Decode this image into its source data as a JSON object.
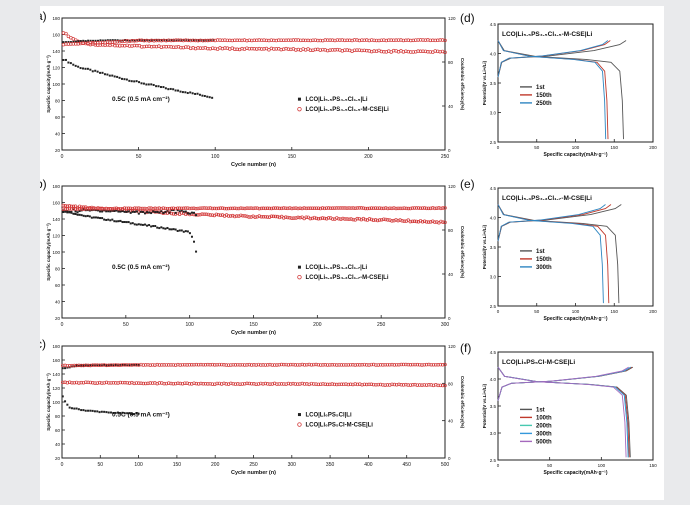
{
  "chart_data": [
    {
      "panel_label": "(a)",
      "type": "scatter",
      "xlabel": "Cycle number (n)",
      "ylabel": "Specific capacity(mAh g⁻¹)",
      "y2label": "Coulombic efficiency(%)",
      "xlim": [
        0,
        250
      ],
      "ylim": [
        20,
        180
      ],
      "y2lim": [
        0,
        120
      ],
      "xticks": [
        0,
        50,
        100,
        150,
        200,
        250
      ],
      "yticks": [
        20,
        40,
        60,
        80,
        100,
        120,
        140,
        160,
        180
      ],
      "y2ticks": [
        0,
        40,
        80,
        120
      ],
      "annotation": "0.5C (0.5 mA cm⁻²)",
      "legend": [
        "LCO|Li₅.₅PS₄.₅Cl₁.₅|Li",
        "LCO|Li₅.₅PS₄.₅Cl₁.₅-M-CSE|Li"
      ],
      "series": [
        {
          "name": "LCO|Li₅.₅PS₄.₅Cl₁.₅|Li",
          "color": "#222222",
          "axis": "capacity",
          "x": [
            1,
            10,
            30,
            50,
            70,
            90,
            98
          ],
          "y": [
            130,
            121,
            111,
            102,
            94,
            87,
            84
          ]
        },
        {
          "name": "LCO|Li₅.₅PS₄.₅Cl₁.₅-M-CSE|Li",
          "color": "#d33a3a",
          "axis": "capacity",
          "x": [
            1,
            10,
            20,
            50,
            100,
            150,
            200,
            250
          ],
          "y": [
            162,
            152,
            148,
            146,
            143,
            142,
            140,
            139
          ]
        },
        {
          "name": "",
          "color": "#222222",
          "axis": "efficiency",
          "x": [
            1,
            20,
            50,
            99
          ],
          "y": [
            98,
            99.5,
            99.8,
            99.8
          ]
        },
        {
          "name": "",
          "color": "#d33a3a",
          "axis": "efficiency",
          "x": [
            1,
            50,
            100,
            150,
            200,
            250
          ],
          "y": [
            96,
            99.5,
            99.7,
            99.7,
            99.8,
            99.8
          ]
        }
      ]
    },
    {
      "panel_label": "(b)",
      "type": "scatter",
      "xlabel": "Cycle number (n)",
      "ylabel": "Specific capacity(mAh g⁻¹)",
      "y2label": "Coulombic efficiency(%)",
      "xlim": [
        0,
        300
      ],
      "ylim": [
        20,
        180
      ],
      "y2lim": [
        0,
        120
      ],
      "xticks": [
        0,
        50,
        100,
        150,
        200,
        250,
        300
      ],
      "yticks": [
        20,
        40,
        60,
        80,
        100,
        120,
        140,
        160,
        180
      ],
      "y2ticks": [
        0,
        40,
        80,
        120
      ],
      "annotation": "0.5C (0.5 mA cm⁻²)",
      "legend": [
        "LCO|Li₅.₃PS₄.₃Cl₁.₇|Li",
        "LCO|Li₅.₃PS₄.₃Cl₁.₇-M-CSE|Li"
      ],
      "series": [
        {
          "name": "LCO|Li₅.₃PS₄.₃Cl₁.₇|Li",
          "color": "#222222",
          "axis": "capacity",
          "x": [
            1,
            20,
            50,
            80,
            100,
            103,
            105
          ],
          "y": [
            150,
            143,
            136,
            129,
            124,
            115,
            100
          ]
        },
        {
          "name": "LCO|Li₅.₃PS₄.₃Cl₁.₇-M-CSE|Li",
          "color": "#d33a3a",
          "axis": "capacity",
          "x": [
            1,
            50,
            100,
            150,
            200,
            250,
            300
          ],
          "y": [
            156,
            150,
            146,
            143,
            141,
            139,
            136
          ]
        },
        {
          "name": "",
          "color": "#222222",
          "axis": "efficiency",
          "x": [
            1,
            30,
            60,
            90,
            105
          ],
          "y": [
            97,
            98,
            96,
            97,
            95
          ]
        },
        {
          "name": "",
          "color": "#d33a3a",
          "axis": "efficiency",
          "x": [
            1,
            50,
            100,
            150,
            200,
            250,
            300
          ],
          "y": [
            99,
            99.6,
            99.7,
            99.7,
            99.8,
            99.8,
            99.8
          ]
        }
      ]
    },
    {
      "panel_label": "(c)",
      "type": "scatter",
      "xlabel": "Cycle number (n)",
      "ylabel": "Specific capacity(mAh g⁻¹)",
      "y2label": "Coulombic efficiency(%)",
      "xlim": [
        0,
        500
      ],
      "ylim": [
        20,
        180
      ],
      "y2lim": [
        0,
        120
      ],
      "xticks": [
        0,
        50,
        100,
        150,
        200,
        250,
        300,
        350,
        400,
        450,
        500
      ],
      "yticks": [
        20,
        40,
        60,
        80,
        100,
        120,
        140,
        160,
        180
      ],
      "y2ticks": [
        0,
        40,
        80,
        120
      ],
      "annotation": "0.5C (0.5 mA cm⁻²)",
      "legend": [
        "LCO|Li₆PS₅Cl|Li",
        "LCO|Li₆PS₅Cl-M-CSE|Li"
      ],
      "series": [
        {
          "name": "LCO|Li₆PS₅Cl|Li",
          "color": "#222222",
          "axis": "capacity",
          "x": [
            1,
            5,
            10,
            30,
            60,
            80,
            100
          ],
          "y": [
            108,
            98,
            92,
            88,
            85,
            84,
            83
          ]
        },
        {
          "name": "LCO|Li₆PS₅Cl-M-CSE|Li",
          "color": "#d33a3a",
          "axis": "capacity",
          "x": [
            1,
            100,
            200,
            300,
            400,
            500
          ],
          "y": [
            128,
            127,
            126,
            126,
            125,
            124
          ]
        },
        {
          "name": "",
          "color": "#222222",
          "axis": "efficiency",
          "x": [
            1,
            20,
            50,
            100
          ],
          "y": [
            96,
            99,
            99.5,
            99.6
          ]
        },
        {
          "name": "",
          "color": "#d33a3a",
          "axis": "efficiency",
          "x": [
            1,
            100,
            200,
            300,
            400,
            500
          ],
          "y": [
            99,
            99.8,
            99.8,
            99.9,
            99.9,
            99.9
          ]
        }
      ]
    },
    {
      "panel_label": "(d)",
      "type": "line",
      "title": "LCO|Li₅.₅PS₄.₅Cl₁.₅-M-CSE|Li",
      "xlabel": "Specific capacity(mAh·g⁻¹)",
      "ylabel": "Potential(V vs.Li+/Li)",
      "xlim": [
        0,
        200
      ],
      "ylim": [
        2.5,
        4.5
      ],
      "xticks": [
        0,
        50,
        100,
        150,
        200
      ],
      "yticks": [
        2.5,
        3.0,
        3.5,
        4.0,
        4.5
      ],
      "legend": [
        "1st",
        "150th",
        "250th"
      ],
      "series": [
        {
          "name": "1st",
          "color": "#555555",
          "capacity": 162
        },
        {
          "name": "150th",
          "color": "#c0392b",
          "capacity": 142
        },
        {
          "name": "250th",
          "color": "#2e86c1",
          "capacity": 139
        }
      ]
    },
    {
      "panel_label": "(e)",
      "type": "line",
      "title": "LCO|Li₅.₃PS₄.₃Cl₁.₇-M-CSE|Li",
      "xlabel": "Specific capacity(mAh·g⁻¹)",
      "ylabel": "Potential(V vs.Li+/Li)",
      "xlim": [
        0,
        200
      ],
      "ylim": [
        2.5,
        4.5
      ],
      "xticks": [
        0,
        50,
        100,
        150,
        200
      ],
      "yticks": [
        2.5,
        3.0,
        3.5,
        4.0,
        4.5
      ],
      "legend": [
        "1st",
        "150th",
        "300th"
      ],
      "series": [
        {
          "name": "1st",
          "color": "#555555",
          "capacity": 156
        },
        {
          "name": "150th",
          "color": "#c0392b",
          "capacity": 143
        },
        {
          "name": "300th",
          "color": "#2e86c1",
          "capacity": 136
        }
      ]
    },
    {
      "panel_label": "(f)",
      "type": "line",
      "title": "LCO|Li₆PS₅Cl-M-CSE|Li",
      "xlabel": "Specific capacity(mAh·g⁻¹)",
      "ylabel": "Potential(V vs.Li+/Li)",
      "xlim": [
        0,
        150
      ],
      "ylim": [
        2.5,
        4.5
      ],
      "xticks": [
        0,
        50,
        100,
        150
      ],
      "yticks": [
        2.5,
        3.0,
        3.5,
        4.0,
        4.5
      ],
      "legend": [
        "1st",
        "100th",
        "200th",
        "300th",
        "500th"
      ],
      "series": [
        {
          "name": "1st",
          "color": "#555555",
          "capacity": 128
        },
        {
          "name": "100th",
          "color": "#c0392b",
          "capacity": 127
        },
        {
          "name": "200th",
          "color": "#48c9b0",
          "capacity": 126
        },
        {
          "name": "300th",
          "color": "#3498db",
          "capacity": 126
        },
        {
          "name": "500th",
          "color": "#a569bd",
          "capacity": 124
        }
      ]
    }
  ]
}
